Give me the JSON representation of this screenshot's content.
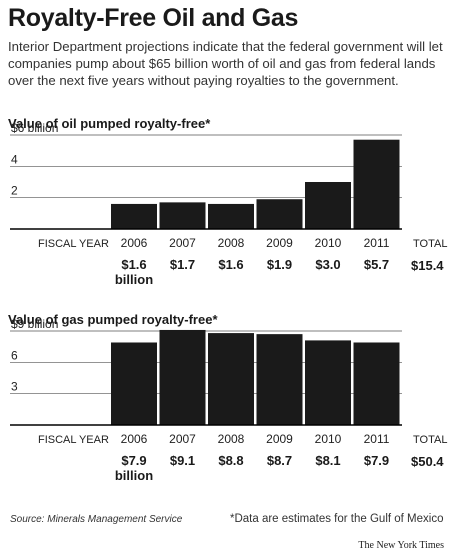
{
  "header": {
    "title": "Royalty-Free Oil and Gas",
    "deck": "Interior Department projections indicate that the federal government will let companies pump about $65 billion worth of oil and gas from federal lands over the next five years without paying royalties to the government."
  },
  "labels": {
    "fiscal_year": "FISCAL YEAR",
    "total": "TOTAL"
  },
  "footer": {
    "source": "Source: Minerals Management Service",
    "footnote": "*Data are estimates for the Gulf of Mexico",
    "credit": "The New York Times"
  },
  "colors": {
    "bar": "#1a1a1a",
    "axis": "#000000",
    "grid": "#555555"
  },
  "chart_data": [
    {
      "type": "bar",
      "title": "Value of oil pumped royalty-free*",
      "categories": [
        "2006",
        "2007",
        "2008",
        "2009",
        "2010",
        "2011"
      ],
      "values": [
        1.6,
        1.7,
        1.6,
        1.9,
        3.0,
        5.7
      ],
      "value_labels": [
        "$1.6",
        "$1.7",
        "$1.6",
        "$1.9",
        "$3.0",
        "$5.7"
      ],
      "first_value_unit": "billion",
      "total": "$15.4",
      "ylim": [
        0,
        6
      ],
      "yticks": [
        2,
        4,
        6
      ],
      "ytick_labels": [
        "2",
        "4",
        "$6 billion"
      ],
      "grid": true
    },
    {
      "type": "bar",
      "title": "Value of gas pumped royalty-free*",
      "categories": [
        "2006",
        "2007",
        "2008",
        "2009",
        "2010",
        "2011"
      ],
      "values": [
        7.9,
        9.1,
        8.8,
        8.7,
        8.1,
        7.9
      ],
      "value_labels": [
        "$7.9",
        "$9.1",
        "$8.8",
        "$8.7",
        "$8.1",
        "$7.9"
      ],
      "first_value_unit": "billion",
      "total": "$50.4",
      "ylim": [
        0,
        9
      ],
      "yticks": [
        3,
        6,
        9
      ],
      "ytick_labels": [
        "3",
        "6",
        "$9 billion"
      ],
      "grid": true
    }
  ]
}
